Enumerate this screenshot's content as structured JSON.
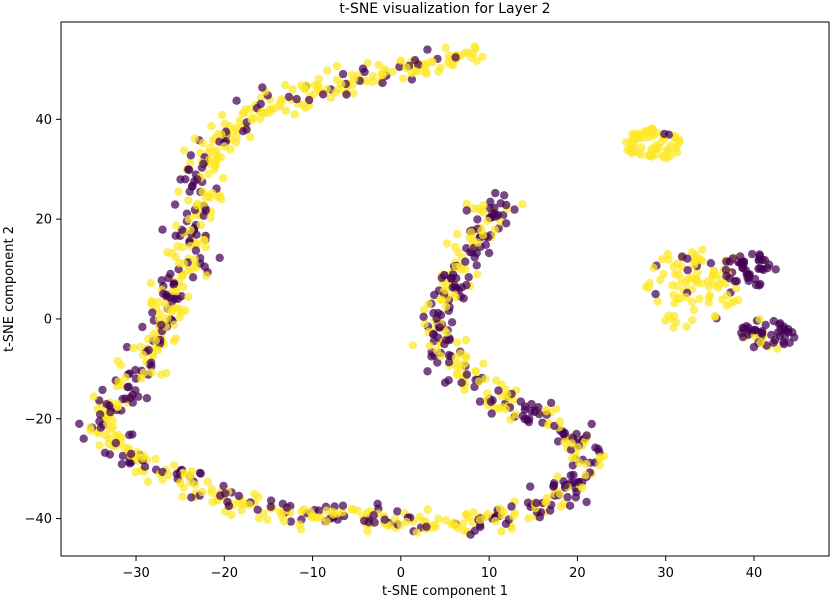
{
  "chart_data": {
    "type": "scatter",
    "title": "t-SNE visualization for Layer 2",
    "xlabel": "t-SNE component 1",
    "ylabel": "t-SNE component 2",
    "xlim": [
      -38.5,
      48.5
    ],
    "ylim": [
      -47.5,
      59.5
    ],
    "xticks": [
      -30,
      -20,
      -10,
      0,
      10,
      20,
      30,
      40
    ],
    "xtick_labels": [
      "−30",
      "−20",
      "−10",
      "0",
      "10",
      "20",
      "30",
      "40"
    ],
    "yticks": [
      -40,
      -20,
      0,
      20,
      40
    ],
    "ytick_labels": [
      "−40",
      "−20",
      "0",
      "20",
      "40"
    ],
    "grid": false,
    "legend": "none",
    "colors": {
      "class_0": "#440154",
      "class_1": "#fde725"
    },
    "clusters": [
      {
        "name": "left-curve",
        "path": [
          [
            9,
            54
          ],
          [
            0,
            50
          ],
          [
            -9,
            46
          ],
          [
            -16,
            42
          ],
          [
            -21,
            36
          ],
          [
            -23,
            30
          ],
          [
            -23,
            22
          ],
          [
            -24,
            14
          ],
          [
            -26,
            4
          ],
          [
            -28,
            -6
          ],
          [
            -30,
            -12
          ],
          [
            -33,
            -18
          ],
          [
            -34,
            -22
          ],
          [
            -31,
            -27
          ],
          [
            -26,
            -31
          ],
          [
            -20,
            -36
          ],
          [
            -12,
            -39
          ],
          [
            -4,
            -40
          ],
          [
            4,
            -41
          ],
          [
            12,
            -40
          ],
          [
            18,
            -36
          ],
          [
            21,
            -30
          ],
          [
            20,
            -24
          ],
          [
            16,
            -19
          ],
          [
            10,
            -15
          ],
          [
            6,
            -9
          ],
          [
            4,
            -3
          ],
          [
            4,
            2
          ],
          [
            6,
            8
          ],
          [
            8,
            14
          ],
          [
            10,
            20
          ],
          [
            10,
            25
          ]
        ],
        "spread": 1.2,
        "density": 14,
        "segments": [
          {
            "from": 0,
            "to": 5,
            "ratio_class0": 0.22
          },
          {
            "from": 5,
            "to": 13,
            "ratio_class0": 0.45
          },
          {
            "from": 13,
            "to": 20,
            "ratio_class0": 0.35
          },
          {
            "from": 20,
            "to": 32,
            "ratio_class0": 0.62
          }
        ]
      },
      {
        "name": "top-right-blob",
        "center": [
          28.5,
          35
        ],
        "radius": [
          3.3,
          3.2
        ],
        "count": 60,
        "ratio_class0": 0.04
      },
      {
        "name": "right-blob-yellow",
        "center": [
          33,
          6
        ],
        "radius": [
          5.5,
          8.5
        ],
        "count": 95,
        "ratio_class0": 0.1
      },
      {
        "name": "right-blob-purple-upper",
        "center": [
          40,
          10
        ],
        "radius": [
          3.5,
          3.5
        ],
        "count": 45,
        "ratio_class0": 0.9
      },
      {
        "name": "right-blob-purple-lower",
        "center": [
          41.5,
          -3
        ],
        "radius": [
          3.2,
          3.2
        ],
        "count": 50,
        "ratio_class0": 0.85
      }
    ]
  }
}
